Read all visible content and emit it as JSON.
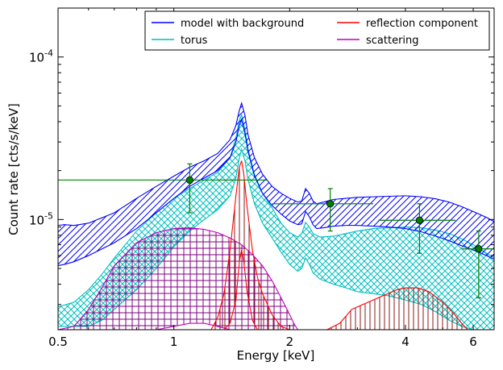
{
  "chart_data": {
    "type": "line",
    "xlabel": "Energy [keV]",
    "ylabel": "Count rate [cts/s/keV]",
    "xscale": "log",
    "yscale": "log",
    "xlim": [
      0.5,
      6.8
    ],
    "ylim": [
      2.1e-06,
      0.0002
    ],
    "x_ticks": [
      {
        "value": 0.5,
        "label": "0.5"
      },
      {
        "value": 1,
        "label": "1"
      },
      {
        "value": 2,
        "label": "2"
      },
      {
        "value": 4,
        "label": "4"
      },
      {
        "value": 6,
        "label": "6"
      }
    ],
    "y_ticks": [
      {
        "value": 1e-05,
        "base": "10",
        "exp": "-5"
      },
      {
        "value": 0.0001,
        "base": "10",
        "exp": "-4"
      }
    ],
    "legend": {
      "placement": "top-right",
      "columns": 2,
      "entries": [
        "model with background",
        "torus",
        "reflection component",
        "scattering"
      ]
    },
    "colors": {
      "model": "#0000ff",
      "torus": "#00bfbf",
      "reflection": "#ff0000",
      "scattering": "#bf00bf",
      "data": "#008000",
      "reflection_hatch": "#8b1a1a",
      "scattering_hatch": "#800080"
    },
    "series": [
      {
        "name": "model with background",
        "style": "band",
        "x": [
          0.5,
          0.52,
          0.55,
          0.6,
          0.7,
          0.8,
          0.9,
          1.0,
          1.1,
          1.2,
          1.3,
          1.4,
          1.45,
          1.48,
          1.5,
          1.53,
          1.56,
          1.62,
          1.7,
          1.8,
          1.9,
          2.0,
          2.1,
          2.15,
          2.2,
          2.25,
          2.3,
          2.35,
          2.45,
          2.6,
          2.8,
          3.0,
          3.3,
          3.6,
          4.0,
          4.4,
          4.8,
          5.2,
          5.6,
          6.0,
          6.5,
          6.8
        ],
        "upper": [
          9.2e-06,
          9.3e-06,
          9.2e-06,
          9.5e-06,
          1.1e-05,
          1.35e-05,
          1.6e-05,
          1.85e-05,
          2.1e-05,
          2.3e-05,
          2.55e-05,
          3.1e-05,
          3.8e-05,
          4.7e-05,
          5.2e-05,
          4.4e-05,
          3.3e-05,
          2.4e-05,
          1.9e-05,
          1.6e-05,
          1.45e-05,
          1.35e-05,
          1.28e-05,
          1.3e-05,
          1.55e-05,
          1.45e-05,
          1.3e-05,
          1.25e-05,
          1.28e-05,
          1.33e-05,
          1.35e-05,
          1.37e-05,
          1.38e-05,
          1.39e-05,
          1.4e-05,
          1.38e-05,
          1.34e-05,
          1.28e-05,
          1.2e-05,
          1.12e-05,
          1.03e-05,
          9.7e-06
        ],
        "lower": [
          5.2e-06,
          5.3e-06,
          5.5e-06,
          6e-06,
          7.2e-06,
          8.8e-06,
          1.1e-05,
          1.35e-05,
          1.6e-05,
          1.8e-05,
          2e-05,
          2.4e-05,
          3e-05,
          3.8e-05,
          4.1e-05,
          3.4e-05,
          2.6e-05,
          1.85e-05,
          1.45e-05,
          1.22e-05,
          1.08e-05,
          9.8e-06,
          9.3e-06,
          9.4e-06,
          1.12e-05,
          1.04e-05,
          9.3e-06,
          8.8e-06,
          8.9e-06,
          9.1e-06,
          9.2e-06,
          9.2e-06,
          9.1e-06,
          9e-06,
          8.8e-06,
          8.4e-06,
          7.9e-06,
          7.4e-06,
          6.9e-06,
          6.5e-06,
          6e-06,
          5.7e-06
        ]
      },
      {
        "name": "torus",
        "style": "band",
        "x": [
          0.5,
          0.55,
          0.6,
          0.65,
          0.7,
          0.8,
          0.9,
          1.0,
          1.1,
          1.2,
          1.3,
          1.4,
          1.45,
          1.48,
          1.5,
          1.53,
          1.56,
          1.62,
          1.7,
          1.8,
          1.9,
          2.0,
          2.1,
          2.15,
          2.2,
          2.25,
          2.3,
          2.4,
          2.6,
          2.8,
          3.0,
          3.3,
          3.6,
          4.0,
          4.4,
          4.8,
          5.2,
          5.6,
          6.0,
          6.5,
          6.8
        ],
        "upper": [
          2.9e-06,
          3.1e-06,
          3.7e-06,
          4.6e-06,
          5.8e-06,
          8.5e-06,
          1.1e-05,
          1.35e-05,
          1.55e-05,
          1.75e-05,
          1.95e-05,
          2.4e-05,
          3.2e-05,
          4.1e-05,
          4.4e-05,
          3.6e-05,
          2.7e-05,
          1.9e-05,
          1.45e-05,
          1.18e-05,
          9.5e-06,
          8.3e-06,
          7.8e-06,
          8.2e-06,
          9.6e-06,
          9e-06,
          8.2e-06,
          7.8e-06,
          7.9e-06,
          8.2e-06,
          8.5e-06,
          8.8e-06,
          8.9e-06,
          9e-06,
          8.9e-06,
          8.6e-06,
          8.2e-06,
          7.6e-06,
          7e-06,
          6.2e-06,
          5.8e-06
        ],
        "lower": [
          2.2e-06,
          2.2e-06,
          2.2e-06,
          2.4e-06,
          2.8e-06,
          3.7e-06,
          5e-06,
          6.8e-06,
          8.5e-06,
          1e-05,
          1.15e-05,
          1.4e-05,
          1.8e-05,
          2.4e-05,
          2.7e-05,
          2.3e-05,
          1.75e-05,
          1.25e-05,
          9.5e-06,
          7.7e-06,
          6.3e-06,
          5.3e-06,
          4.8e-06,
          5e-06,
          5.8e-06,
          5.3e-06,
          4.7e-06,
          4.3e-06,
          4e-06,
          3.8e-06,
          3.6e-06,
          3.5e-06,
          3.4e-06,
          3.2e-06,
          3e-06,
          2.7e-06,
          2.4e-06,
          2.2e-06,
          2.1e-06,
          2.1e-06,
          2.1e-06
        ]
      },
      {
        "name": "reflection component",
        "style": "band",
        "x": [
          1.25,
          1.3,
          1.35,
          1.4,
          1.45,
          1.48,
          1.5,
          1.52,
          1.55,
          1.6,
          1.65,
          1.7,
          1.8,
          1.9,
          2.0,
          2.05,
          2.5,
          2.7,
          2.9,
          3.2,
          3.5,
          3.8,
          4.0,
          4.3,
          4.6,
          5.0,
          5.3,
          5.6,
          5.8
        ],
        "upper": [
          2.1e-06,
          2.5e-06,
          3.5e-06,
          6.5e-06,
          1.4e-05,
          2.1e-05,
          2.3e-05,
          1.9e-05,
          1.2e-05,
          6.5e-06,
          4.4e-06,
          3.5e-06,
          2.6e-06,
          2.2e-06,
          2.1e-06,
          2.1e-06,
          2.1e-06,
          2.3e-06,
          2.8e-06,
          3.1e-06,
          3.4e-06,
          3.7e-06,
          3.8e-06,
          3.8e-06,
          3.6e-06,
          3.1e-06,
          2.7e-06,
          2.3e-06,
          2.1e-06
        ],
        "lower": [
          2.1e-06,
          2.1e-06,
          2.1e-06,
          2.3e-06,
          3.2e-06,
          5.5e-06,
          6.5e-06,
          5.5e-06,
          3.6e-06,
          2.4e-06,
          2.1e-06,
          2.1e-06,
          2.1e-06,
          2.1e-06,
          2.1e-06,
          2.1e-06,
          2.1e-06,
          2.1e-06,
          2.1e-06,
          2.1e-06,
          2.1e-06,
          2.1e-06,
          2.1e-06,
          2.1e-06,
          2.1e-06,
          2.1e-06,
          2.1e-06,
          2.1e-06,
          2.1e-06
        ]
      },
      {
        "name": "scattering",
        "style": "band",
        "x": [
          0.5,
          0.55,
          0.6,
          0.65,
          0.7,
          0.8,
          0.9,
          1.0,
          1.1,
          1.2,
          1.3,
          1.4,
          1.5,
          1.6,
          1.7,
          1.8,
          1.9,
          2.0,
          2.05,
          2.1
        ],
        "upper": [
          2.1e-06,
          2.2e-06,
          2.8e-06,
          3.8e-06,
          5.2e-06,
          7.2e-06,
          8.3e-06,
          8.8e-06,
          8.9e-06,
          8.7e-06,
          8.3e-06,
          7.7e-06,
          7e-06,
          6.1e-06,
          5.2e-06,
          4.2e-06,
          3.3e-06,
          2.6e-06,
          2.3e-06,
          2.1e-06
        ],
        "lower": [
          2.1e-06,
          2.1e-06,
          2.1e-06,
          2.1e-06,
          2.1e-06,
          2.1e-06,
          2.1e-06,
          2.2e-06,
          2.3e-06,
          2.3e-06,
          2.2e-06,
          2.1e-06,
          2.1e-06,
          2.1e-06,
          2.1e-06,
          2.1e-06,
          2.1e-06,
          2.1e-06,
          2.1e-06,
          2.1e-06
        ]
      }
    ],
    "data_points": [
      {
        "x": 1.1,
        "y": 1.75e-05,
        "xerr": [
          0.5,
          1.75
        ],
        "yerr": [
          1.1e-05,
          2.2e-05
        ]
      },
      {
        "x": 2.55,
        "y": 1.25e-05,
        "xerr": [
          1.8,
          3.3
        ],
        "yerr": [
          8.5e-06,
          1.55e-05
        ]
      },
      {
        "x": 4.35,
        "y": 9.9e-06,
        "xerr": [
          3.4,
          5.4
        ],
        "yerr": [
          6.2e-06,
          1.25e-05
        ]
      },
      {
        "x": 6.2,
        "y": 6.6e-06,
        "xerr": [
          5.6,
          6.8
        ],
        "yerr": [
          3.3e-06,
          8.5e-06
        ]
      }
    ]
  }
}
